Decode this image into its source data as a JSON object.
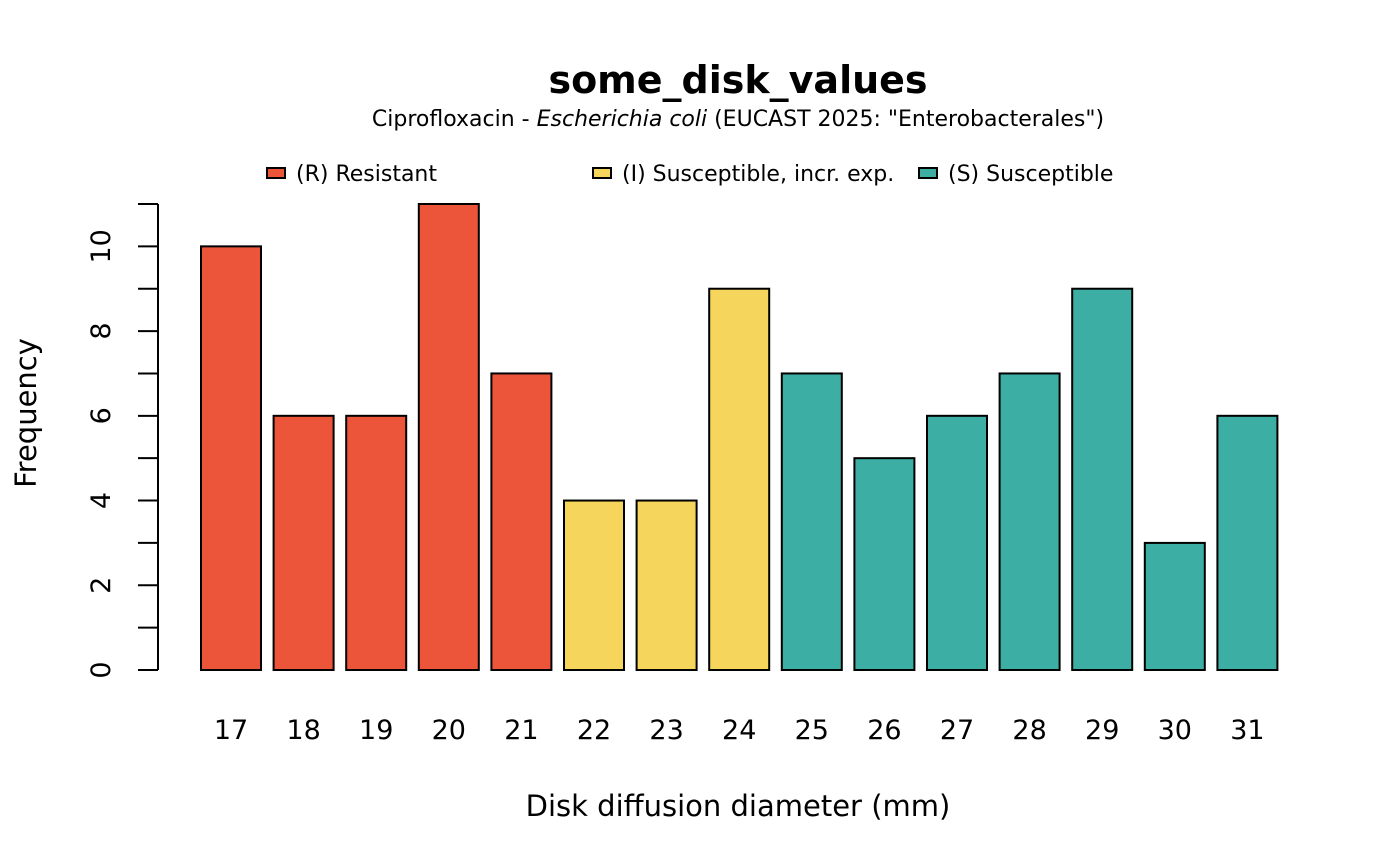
{
  "chart_data": {
    "type": "bar",
    "title": "some_disk_values",
    "subtitle": {
      "before": "Ciprofloxacin - ",
      "italic": "Escherichia coli",
      "after": " (EUCAST 2025: \"Enterobacterales\")"
    },
    "xlabel": "Disk diffusion diameter (mm)",
    "ylabel": "Frequency",
    "categories": [
      "17",
      "18",
      "19",
      "20",
      "21",
      "22",
      "23",
      "24",
      "25",
      "26",
      "27",
      "28",
      "29",
      "30",
      "31"
    ],
    "values": [
      10,
      6,
      6,
      11,
      7,
      4,
      4,
      9,
      7,
      5,
      6,
      7,
      9,
      3,
      6
    ],
    "bar_groups": [
      "R",
      "R",
      "R",
      "R",
      "R",
      "I",
      "I",
      "I",
      "S",
      "S",
      "S",
      "S",
      "S",
      "S",
      "S"
    ],
    "ylim": [
      0,
      11
    ],
    "yticks": [
      0,
      2,
      4,
      6,
      8,
      10
    ],
    "yminor_ticks": [
      1,
      3,
      5,
      7,
      9,
      11
    ],
    "grid": false,
    "legend_position": "top",
    "legend": [
      {
        "key": "R",
        "label": "(R) Resistant",
        "color": "#ED553B"
      },
      {
        "key": "I",
        "label": "(I) Susceptible, incr. exp.",
        "color": "#F6D55C"
      },
      {
        "key": "S",
        "label": "(S) Susceptible",
        "color": "#3CAEA3"
      }
    ]
  }
}
